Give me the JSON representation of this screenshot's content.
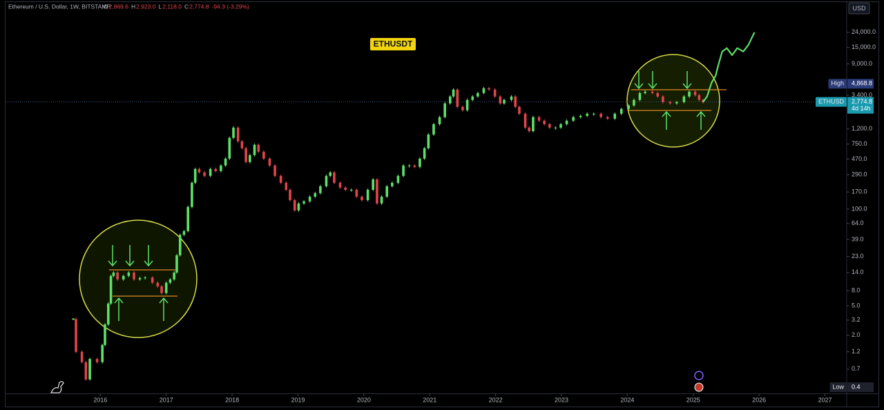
{
  "header": {
    "title": "Ethereum / U.S. Dollar, 1W, BITSTAMP",
    "ohlc": [
      {
        "label": "O",
        "value": "2,869.6"
      },
      {
        "label": "H",
        "value": "2,923.0"
      },
      {
        "label": "L",
        "value": "2,118.0"
      },
      {
        "label": "C",
        "value": "2,774.8"
      }
    ],
    "change": "-94.3 (-3.29%)",
    "currency": "USD"
  },
  "chart_data": {
    "type": "candlestick",
    "title": "ETHUSDT",
    "log_scale": true,
    "grid": false,
    "up_color": "#5ee06a",
    "down_color": "#e0454b",
    "xlim": [
      2014.56,
      2027.32
    ],
    "xticks": [
      2016,
      2017,
      2018,
      2019,
      2020,
      2021,
      2022,
      2023,
      2024,
      2025,
      2026,
      2027
    ],
    "ylim": [
      0.33,
      55000
    ],
    "yticks": [
      {
        "value": 24000,
        "label": "24,000.0"
      },
      {
        "value": 15000,
        "label": "15,000.0"
      },
      {
        "value": 9000,
        "label": "9,000.0"
      },
      {
        "value": 3400,
        "label": "3,400.0"
      },
      {
        "value": 1200,
        "label": "1,200.0"
      },
      {
        "value": 750,
        "label": "750.0"
      },
      {
        "value": 470,
        "label": "470.0"
      },
      {
        "value": 290,
        "label": "290.0"
      },
      {
        "value": 170,
        "label": "170.0"
      },
      {
        "value": 100,
        "label": "100.0"
      },
      {
        "value": 64,
        "label": "64.0"
      },
      {
        "value": 39,
        "label": "39.0"
      },
      {
        "value": 23,
        "label": "23.0"
      },
      {
        "value": 14,
        "label": "14.0"
      },
      {
        "value": 8,
        "label": "8.0"
      },
      {
        "value": 5,
        "label": "5.0"
      },
      {
        "value": 3.2,
        "label": "3.2"
      },
      {
        "value": 2,
        "label": "2.0"
      },
      {
        "value": 1.2,
        "label": "1.2"
      },
      {
        "value": 0.7,
        "label": "0.7"
      }
    ],
    "x": [
      2015.59,
      2015.63,
      2015.72,
      2015.78,
      2015.84,
      2015.95,
      2016.03,
      2016.07,
      2016.12,
      2016.16,
      2016.2,
      2016.26,
      2016.35,
      2016.43,
      2016.51,
      2016.6,
      2016.68,
      2016.79,
      2016.87,
      2016.93,
      2017.0,
      2017.06,
      2017.12,
      2017.16,
      2017.21,
      2017.27,
      2017.33,
      2017.39,
      2017.44,
      2017.5,
      2017.58,
      2017.67,
      2017.75,
      2017.83,
      2017.9,
      2017.96,
      2018.02,
      2018.09,
      2018.15,
      2018.21,
      2018.27,
      2018.34,
      2018.4,
      2018.48,
      2018.57,
      2018.65,
      2018.74,
      2018.82,
      2018.88,
      2018.95,
      2019.01,
      2019.09,
      2019.18,
      2019.26,
      2019.34,
      2019.43,
      2019.49,
      2019.55,
      2019.64,
      2019.72,
      2019.81,
      2019.89,
      2019.97,
      2020.06,
      2020.14,
      2020.2,
      2020.27,
      2020.35,
      2020.43,
      2020.52,
      2020.6,
      2020.69,
      2020.77,
      2020.85,
      2020.92,
      2020.98,
      2021.06,
      2021.15,
      2021.23,
      2021.31,
      2021.36,
      2021.42,
      2021.5,
      2021.57,
      2021.65,
      2021.73,
      2021.82,
      2021.9,
      2021.99,
      2022.07,
      2022.13,
      2022.24,
      2022.3,
      2022.36,
      2022.45,
      2022.51,
      2022.57,
      2022.66,
      2022.74,
      2022.82,
      2022.91,
      2022.99,
      2023.08,
      2023.18,
      2023.29,
      2023.39,
      2023.49,
      2023.6,
      2023.7,
      2023.81,
      2023.91,
      2024.02,
      2024.1,
      2024.19,
      2024.27,
      2024.38,
      2024.46,
      2024.54,
      2024.65,
      2024.75,
      2024.86,
      2024.94,
      2025.03,
      2025.09,
      2025.15
    ],
    "values": [
      3.3,
      1.2,
      0.87,
      0.51,
      0.96,
      0.87,
      1.48,
      2.8,
      5.35,
      12.6,
      14.0,
      11.3,
      12.6,
      14.0,
      11.3,
      11.8,
      12.0,
      10.2,
      9.1,
      7.4,
      10.2,
      11.3,
      14.0,
      23.9,
      45,
      50.5,
      107,
      226,
      347,
      312,
      280,
      347,
      325,
      386,
      478,
      909,
      1250,
      817,
      660,
      430,
      532,
      734,
      592,
      478,
      386,
      280,
      226,
      182,
      132,
      96,
      119,
      127,
      147,
      164,
      203,
      280,
      312,
      226,
      195,
      182,
      182,
      147,
      132,
      182,
      251,
      119,
      147,
      203,
      226,
      280,
      386,
      386,
      370,
      478,
      660,
      1010,
      1390,
      1730,
      2650,
      3280,
      4070,
      2380,
      2140,
      2950,
      3280,
      3650,
      4240,
      4070,
      3280,
      2650,
      2950,
      3280,
      2380,
      1920,
      1250,
      1120,
      1730,
      1550,
      1390,
      1250,
      1250,
      1390,
      1550,
      1730,
      1800,
      1920,
      1920,
      1730,
      1650,
      1920,
      2230,
      2480,
      2950,
      3650,
      3810,
      3650,
      3280,
      2760,
      2650,
      2760,
      3280,
      3810,
      3420,
      2950,
      2760
    ],
    "projection": {
      "color": "#5ee06a",
      "x": [
        2025.15,
        2025.21,
        2025.28,
        2025.34,
        2025.38,
        2025.44,
        2025.51,
        2025.59,
        2025.67,
        2025.76,
        2025.84,
        2025.93
      ],
      "values": [
        2760,
        3280,
        5040,
        6240,
        8600,
        13200,
        14700,
        11800,
        14700,
        13200,
        16300,
        24000
      ]
    },
    "markers": [
      {
        "name": "High",
        "value": 4868.8,
        "value_label": "4,868.8",
        "color": "#2b3a78"
      },
      {
        "name": "ETHUSD",
        "value": 2774.8,
        "value_label": "2,774.8",
        "countdown": "4d 14h",
        "color": "#1a9aae"
      },
      {
        "name": "Low",
        "value": 0.4,
        "value_label": "0.4",
        "color": "#1e222d"
      }
    ]
  }
}
